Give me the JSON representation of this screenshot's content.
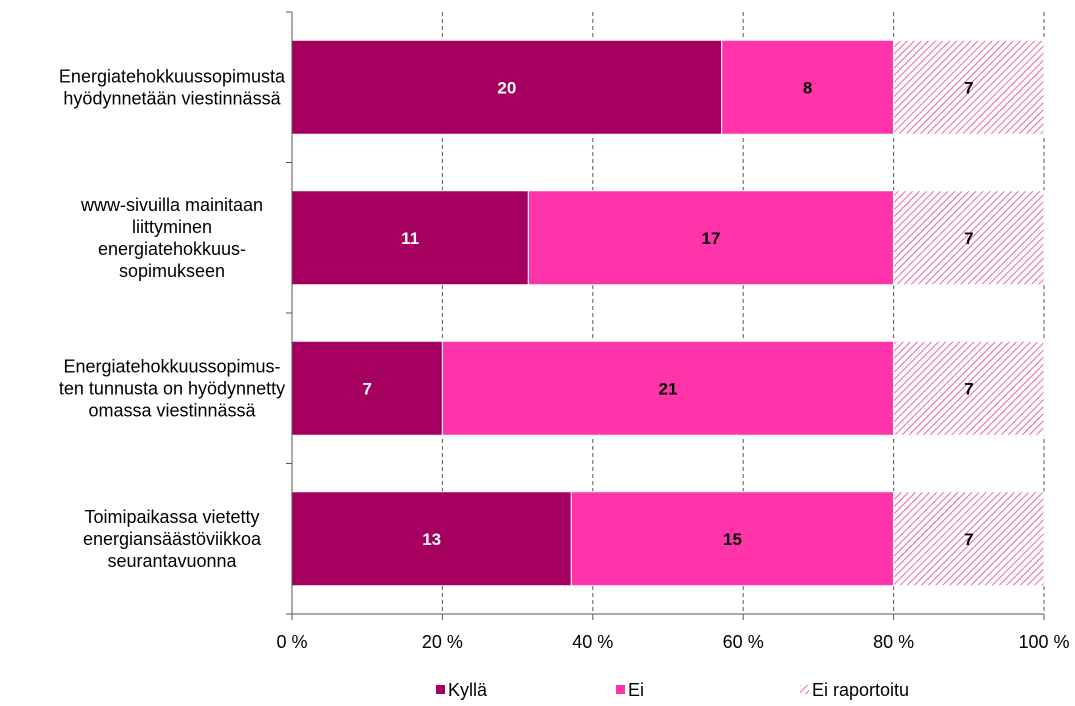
{
  "chart_data": {
    "type": "bar",
    "orientation": "horizontal",
    "stacked": "percent",
    "title": "",
    "xlabel": "",
    "ylabel": "",
    "xlim": [
      0,
      100
    ],
    "x_ticks": [
      "0 %",
      "20 %",
      "40 %",
      "60 %",
      "80 %",
      "100 %"
    ],
    "grid": "vertical dashed",
    "legend_position": "bottom",
    "categories": [
      [
        "Energiatehokkuussopimusta",
        "hyödynnetään viestinnässä"
      ],
      [
        "www-sivuilla mainitaan",
        "liittyminen",
        "energiatehokkuus-",
        "sopimukseen"
      ],
      [
        "Energiatehokkuussopimus-",
        "ten tunnusta on hyödynnetty",
        "omassa viestinnässä"
      ],
      [
        "Toimipaikassa vietetty",
        "energiansäästöviikkoa",
        "seurantavuonna"
      ]
    ],
    "series": [
      {
        "name": "Kyllä",
        "values": [
          20,
          11,
          7,
          13
        ],
        "color": "#a50060",
        "pattern": "solid",
        "label_color": "#ffffff"
      },
      {
        "name": "Ei",
        "values": [
          8,
          17,
          21,
          15
        ],
        "color": "#ff33aa",
        "pattern": "solid",
        "label_color": "#000000"
      },
      {
        "name": "Ei raportoitu",
        "values": [
          7,
          7,
          7,
          7
        ],
        "color": "#e0409a",
        "pattern": "hatched",
        "label_color": "#000000"
      }
    ]
  }
}
